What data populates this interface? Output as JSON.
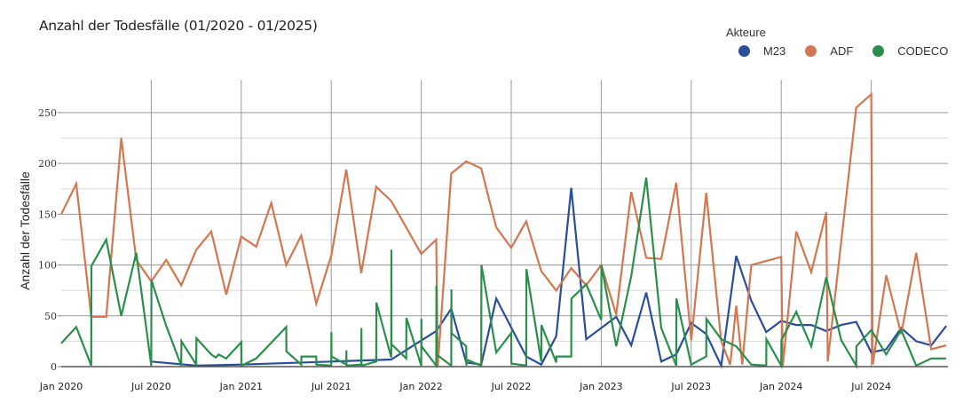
{
  "title": "Anzahl der Todesfälle (01/2020 - 01/2025)",
  "legend": {
    "title": "Akteure",
    "items": [
      {
        "label": "M23",
        "color": "#2a4d9c"
      },
      {
        "label": "ADF",
        "color": "#d4764f"
      },
      {
        "label": "CODECO",
        "color": "#2a8f4a"
      }
    ]
  },
  "chart_data": {
    "type": "line",
    "title": "Anzahl der Todesfälle (01/2020 - 01/2025)",
    "xlabel": "",
    "ylabel": "Anzahl der Todesfälle",
    "ylim": [
      0,
      275
    ],
    "yticks": [
      0,
      50,
      100,
      150,
      200,
      250
    ],
    "xticks": [
      "Jan 2020",
      "Jul 2020",
      "Jan 2021",
      "Jul 2021",
      "Jan 2022",
      "Jul 2022",
      "Jan 2023",
      "Jul 2023",
      "Jan 2024",
      "Jul 2024"
    ],
    "grid": true,
    "legend_position": "top-right",
    "legend_title": "Akteure",
    "x_unit": "months since Jan 2020",
    "series": [
      {
        "name": "M23",
        "color": "#2a4d9c",
        "points": [
          [
            6,
            5
          ],
          [
            9,
            1
          ],
          [
            12,
            2
          ],
          [
            18,
            5
          ],
          [
            22,
            7
          ],
          [
            25,
            35
          ],
          [
            26,
            57
          ],
          [
            27,
            4
          ],
          [
            28,
            2
          ],
          [
            29,
            67
          ],
          [
            31,
            10
          ],
          [
            32,
            2
          ],
          [
            33,
            30
          ],
          [
            34,
            176
          ],
          [
            35,
            27
          ],
          [
            37,
            49
          ],
          [
            38,
            21
          ],
          [
            39,
            73
          ],
          [
            40,
            5
          ],
          [
            41,
            12
          ],
          [
            42,
            43
          ],
          [
            43,
            32
          ],
          [
            44,
            1
          ],
          [
            45,
            109
          ],
          [
            46,
            65
          ],
          [
            47,
            34
          ],
          [
            48,
            45
          ],
          [
            49,
            41
          ],
          [
            50,
            41
          ],
          [
            51,
            35
          ],
          [
            52,
            41
          ],
          [
            53,
            44
          ],
          [
            54,
            14
          ],
          [
            55,
            17
          ],
          [
            56,
            38
          ],
          [
            57,
            25
          ],
          [
            58,
            21
          ],
          [
            59,
            40
          ]
        ]
      },
      {
        "name": "ADF",
        "color": "#d4764f",
        "points": [
          [
            0,
            150
          ],
          [
            1,
            180
          ],
          [
            2,
            49
          ],
          [
            3,
            49
          ],
          [
            4,
            225
          ],
          [
            5,
            105
          ],
          [
            6,
            84
          ],
          [
            7,
            105
          ],
          [
            8,
            80
          ],
          [
            9,
            115
          ],
          [
            10,
            133
          ],
          [
            11,
            71
          ],
          [
            12,
            128
          ],
          [
            13,
            118
          ],
          [
            14,
            161
          ],
          [
            15,
            100
          ],
          [
            16,
            129
          ],
          [
            17,
            62
          ],
          [
            18,
            109
          ],
          [
            19,
            194
          ],
          [
            20,
            92
          ],
          [
            21,
            177
          ],
          [
            22,
            163
          ],
          [
            23,
            137
          ],
          [
            24,
            111
          ],
          [
            25,
            125
          ],
          [
            25.1,
            0
          ],
          [
            26,
            190
          ],
          [
            27,
            202
          ],
          [
            28,
            195
          ],
          [
            29,
            137
          ],
          [
            30,
            117
          ],
          [
            31,
            143
          ],
          [
            32,
            94
          ],
          [
            33,
            75
          ],
          [
            34,
            97
          ],
          [
            35,
            80
          ],
          [
            36,
            100
          ],
          [
            37,
            51
          ],
          [
            38,
            172
          ],
          [
            39,
            107
          ],
          [
            40,
            106
          ],
          [
            41,
            181
          ],
          [
            42,
            26
          ],
          [
            43,
            171
          ],
          [
            44,
            25
          ],
          [
            44.6,
            2
          ],
          [
            45,
            60
          ],
          [
            45.4,
            2
          ],
          [
            46,
            100
          ],
          [
            48,
            108
          ],
          [
            48.1,
            0
          ],
          [
            49,
            133
          ],
          [
            50,
            93
          ],
          [
            51,
            152
          ],
          [
            51.1,
            5
          ],
          [
            53,
            255
          ],
          [
            54,
            268
          ],
          [
            54.1,
            2
          ],
          [
            55,
            90
          ],
          [
            56,
            32
          ],
          [
            57,
            112
          ],
          [
            58,
            17
          ],
          [
            59,
            21
          ]
        ]
      },
      {
        "name": "CODECO",
        "color": "#2a8f4a",
        "points": [
          [
            0,
            23
          ],
          [
            1,
            39
          ],
          [
            2,
            1
          ],
          [
            2.01,
            99
          ],
          [
            3,
            125
          ],
          [
            4,
            50
          ],
          [
            5,
            112
          ],
          [
            6,
            1
          ],
          [
            6.01,
            85
          ],
          [
            7,
            40
          ],
          [
            8,
            1
          ],
          [
            8.01,
            25
          ],
          [
            9,
            2
          ],
          [
            9.01,
            28
          ],
          [
            10,
            12
          ],
          [
            10.3,
            9
          ],
          [
            10.5,
            12
          ],
          [
            11,
            8
          ],
          [
            12,
            24
          ],
          [
            12.01,
            1
          ],
          [
            13,
            8
          ],
          [
            15,
            39
          ],
          [
            15.01,
            15
          ],
          [
            16,
            2
          ],
          [
            16.01,
            10
          ],
          [
            17,
            10
          ],
          [
            17.01,
            2
          ],
          [
            18,
            1
          ],
          [
            18.01,
            34
          ],
          [
            18.02,
            10
          ],
          [
            19,
            2
          ],
          [
            19.01,
            16
          ],
          [
            19.02,
            1
          ],
          [
            20,
            2
          ],
          [
            20.01,
            38
          ],
          [
            20.02,
            1
          ],
          [
            21,
            5
          ],
          [
            21.01,
            63
          ],
          [
            22,
            9
          ],
          [
            22.01,
            115
          ],
          [
            22.02,
            22
          ],
          [
            23,
            8
          ],
          [
            23.01,
            48
          ],
          [
            24,
            1
          ],
          [
            24.01,
            47
          ],
          [
            24.02,
            20
          ],
          [
            25,
            1
          ],
          [
            25.01,
            80
          ],
          [
            25.02,
            12
          ],
          [
            26,
            1
          ],
          [
            26.01,
            76
          ],
          [
            26.02,
            33
          ],
          [
            27,
            20
          ],
          [
            27.01,
            1
          ],
          [
            27.02,
            7
          ],
          [
            28,
            1
          ],
          [
            28.01,
            100
          ],
          [
            29,
            14
          ],
          [
            30,
            33
          ],
          [
            30.01,
            3
          ],
          [
            31,
            1
          ],
          [
            31.01,
            96
          ],
          [
            32,
            5
          ],
          [
            32.01,
            41
          ],
          [
            33,
            4
          ],
          [
            33.01,
            10
          ],
          [
            34,
            10
          ],
          [
            34.01,
            67
          ],
          [
            35,
            81
          ],
          [
            36,
            46
          ],
          [
            36.01,
            100
          ],
          [
            37,
            20
          ],
          [
            38,
            89
          ],
          [
            39,
            186
          ],
          [
            40,
            38
          ],
          [
            41,
            1
          ],
          [
            41.01,
            67
          ],
          [
            42,
            2
          ],
          [
            43,
            10
          ],
          [
            43.01,
            47
          ],
          [
            44,
            27
          ],
          [
            45,
            20
          ],
          [
            46,
            2
          ],
          [
            47,
            1
          ],
          [
            47.01,
            27
          ],
          [
            48,
            1
          ],
          [
            48.01,
            26
          ],
          [
            49,
            54
          ],
          [
            50,
            20
          ],
          [
            51,
            88
          ],
          [
            52,
            26
          ],
          [
            53,
            1
          ],
          [
            53.01,
            20
          ],
          [
            54,
            36
          ],
          [
            55,
            12
          ],
          [
            56,
            36
          ],
          [
            57,
            1
          ],
          [
            58,
            8
          ],
          [
            59,
            8
          ]
        ]
      }
    ]
  }
}
